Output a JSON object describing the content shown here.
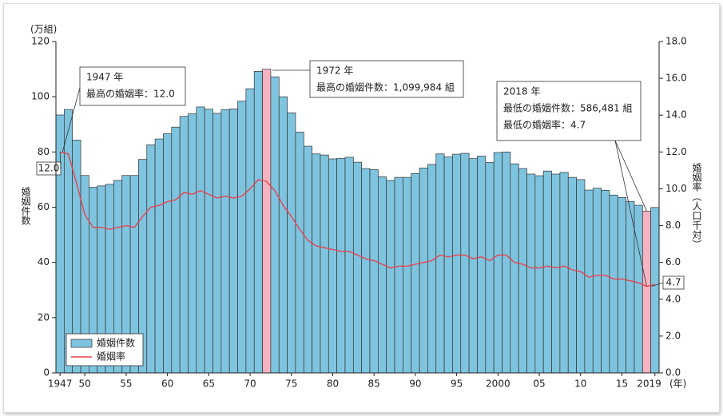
{
  "chart_data": {
    "type": "bar_line",
    "y_unit": "(万組)",
    "ylabel": "婚姻件数",
    "y2label": "婚姻率（人口千対）",
    "x_unit": "(年)",
    "categories": [
      "1947",
      null,
      null,
      "50",
      null,
      null,
      null,
      null,
      "55",
      null,
      null,
      null,
      null,
      "60",
      null,
      null,
      null,
      null,
      "65",
      null,
      null,
      null,
      null,
      "70",
      null,
      null,
      null,
      null,
      "75",
      null,
      null,
      null,
      null,
      "80",
      null,
      null,
      null,
      null,
      "85",
      null,
      null,
      null,
      null,
      "90",
      null,
      null,
      null,
      null,
      "95",
      null,
      null,
      null,
      null,
      "2000",
      null,
      null,
      null,
      null,
      "05",
      null,
      null,
      null,
      null,
      "10",
      null,
      null,
      null,
      null,
      "15",
      null,
      null,
      null,
      "2019"
    ],
    "series": [
      {
        "name": "婚姻件数",
        "color": "#7fc4df",
        "axis": "y",
        "highlight_indices": [
          25,
          71
        ],
        "highlight_color": "#f6b3c1",
        "values": [
          93.4,
          95.4,
          84.3,
          71.5,
          67.2,
          67.7,
          68.3,
          69.7,
          71.5,
          71.5,
          77.3,
          82.6,
          84.7,
          86.6,
          89.0,
          92.9,
          93.8,
          96.3,
          95.5,
          94.0,
          95.3,
          95.6,
          98.4,
          102.9,
          109.2,
          110.0,
          107.2,
          100.0,
          94.2,
          87.2,
          82.1,
          79.3,
          78.9,
          77.5,
          77.7,
          78.1,
          76.3,
          74.0,
          73.6,
          71.0,
          69.7,
          70.8,
          70.8,
          72.2,
          74.2,
          75.5,
          79.3,
          78.2,
          79.2,
          79.5,
          77.6,
          78.5,
          76.2,
          79.8,
          80.0,
          75.7,
          74.0,
          72.0,
          71.4,
          73.1,
          72.0,
          72.6,
          70.8,
          70.0,
          66.2,
          66.9,
          66.1,
          64.4,
          63.5,
          62.1,
          60.7,
          58.6,
          59.9
        ]
      },
      {
        "name": "婚姻率",
        "color": "#e8434f",
        "axis": "y2",
        "values": [
          12.0,
          11.9,
          10.3,
          8.6,
          7.9,
          7.9,
          7.8,
          7.9,
          8.0,
          7.9,
          8.5,
          9.0,
          9.1,
          9.3,
          9.4,
          9.8,
          9.7,
          9.9,
          9.7,
          9.5,
          9.6,
          9.5,
          9.6,
          10.0,
          10.5,
          10.4,
          9.9,
          9.1,
          8.5,
          7.8,
          7.2,
          6.9,
          6.8,
          6.7,
          6.6,
          6.6,
          6.4,
          6.2,
          6.1,
          5.9,
          5.7,
          5.8,
          5.8,
          5.9,
          6.0,
          6.1,
          6.4,
          6.3,
          6.4,
          6.4,
          6.2,
          6.3,
          6.1,
          6.4,
          6.4,
          6.0,
          5.9,
          5.7,
          5.7,
          5.8,
          5.7,
          5.8,
          5.6,
          5.5,
          5.2,
          5.3,
          5.3,
          5.1,
          5.1,
          5.0,
          4.9,
          4.7,
          4.8
        ],
        "value_labels": [
          "12.0",
          null,
          null,
          null,
          null,
          null,
          null,
          null,
          null,
          null,
          null,
          null,
          null,
          null,
          null,
          null,
          null,
          null,
          null,
          null,
          null,
          null,
          null,
          null,
          null,
          null,
          null,
          null,
          null,
          null,
          null,
          null,
          null,
          null,
          null,
          null,
          null,
          null,
          null,
          null,
          null,
          null,
          null,
          null,
          null,
          null,
          null,
          null,
          null,
          null,
          null,
          null,
          null,
          null,
          null,
          null,
          null,
          null,
          null,
          null,
          null,
          null,
          null,
          null,
          null,
          null,
          null,
          null,
          null,
          null,
          null,
          "4.7",
          null
        ]
      }
    ],
    "ylim": [
      0,
      120
    ],
    "yticks": [
      0,
      20,
      40,
      60,
      80,
      100,
      120
    ],
    "y2lim": [
      0,
      18
    ],
    "y2ticks": [
      {
        "value": 0,
        "label": "0.0"
      },
      {
        "value": 2,
        "label": "2.0"
      },
      {
        "value": 4,
        "label": "4.0"
      },
      {
        "value": 6,
        "label": "6.0"
      },
      {
        "value": 8,
        "label": "8.0"
      },
      {
        "value": 10,
        "label": "10.0"
      },
      {
        "value": 12,
        "label": "12.0"
      },
      {
        "value": 14,
        "label": "14.0"
      },
      {
        "value": 16,
        "label": "16.0"
      },
      {
        "value": 18,
        "label": "18.0"
      }
    ],
    "legend": "bottom-left",
    "annotations": [
      {
        "lines": [
          "1947 年",
          "最高の婚姻率：12.0"
        ]
      },
      {
        "lines": [
          "1972 年",
          "最高の婚姻件数：1,099,984 組"
        ]
      },
      {
        "lines": [
          "2018 年",
          "最低の婚姻件数：586,481 組",
          "最低の婚姻率：4.7"
        ]
      }
    ]
  }
}
